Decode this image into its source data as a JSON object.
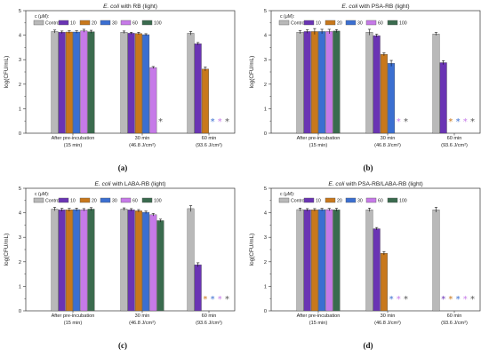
{
  "colors": {
    "Control": "#b9b9b9",
    "10": "#6a34b4",
    "20": "#c8781c",
    "30": "#3b6fd1",
    "60": "#c67ae8",
    "100": "#3a6b4e",
    "star_gray": "#555555"
  },
  "chart_data": [
    {
      "type": "bar",
      "panel_label": "(a)",
      "title_italic": "E. coli",
      "title_rest": " with RB (light)",
      "ylabel": "log(CFU/mL)",
      "ylim": [
        0,
        5
      ],
      "yticks": [
        "0",
        "1",
        "2",
        "3",
        "4",
        "5"
      ],
      "legend_title": "c (μM):",
      "legend": [
        "Control",
        "10",
        "20",
        "30",
        "60",
        "100"
      ],
      "groups": [
        {
          "label1": "After pre-incubation",
          "label2": "(15 min)"
        },
        {
          "label1": "30 min",
          "label2": "(46.8 J/cm²)"
        },
        {
          "label1": "60 min",
          "label2": "(93.6 J/cm²)"
        }
      ],
      "series": [
        {
          "name": "Control",
          "values": [
            4.15,
            4.12,
            4.08
          ]
        },
        {
          "name": "10",
          "values": [
            4.12,
            4.08,
            3.65
          ]
        },
        {
          "name": "20",
          "values": [
            4.13,
            4.07,
            2.62
          ]
        },
        {
          "name": "30",
          "values": [
            4.13,
            4.02,
            0
          ]
        },
        {
          "name": "60",
          "values": [
            4.18,
            2.68,
            0
          ]
        },
        {
          "name": "100",
          "values": [
            4.14,
            0,
            0
          ]
        }
      ],
      "errors": [
        [
          0.06,
          0.05,
          0.07
        ],
        [
          0.05,
          0.04,
          0.05
        ],
        [
          0.05,
          0.05,
          0.08
        ],
        [
          0.05,
          0.04,
          0
        ],
        [
          0.06,
          0.04,
          0
        ],
        [
          0.06,
          0,
          0
        ]
      ],
      "stars": [
        {
          "group": 1,
          "series": "100",
          "text": "*"
        },
        {
          "group": 2,
          "series": "30",
          "text": "*"
        },
        {
          "group": 2,
          "series": "60",
          "text": "*"
        },
        {
          "group": 2,
          "series": "100",
          "text": "*"
        }
      ]
    },
    {
      "type": "bar",
      "panel_label": "(b)",
      "title_italic": "E. coli",
      "title_rest": " with PSA-RB (light)",
      "ylabel": "log(CFU/mL)",
      "ylim": [
        0,
        5
      ],
      "yticks": [
        "0",
        "1",
        "2",
        "3",
        "4",
        "5"
      ],
      "legend_title": "c (μM):",
      "legend": [
        "Control",
        "10",
        "20",
        "30",
        "60",
        "100"
      ],
      "groups": [
        {
          "label1": "After pre-incubation",
          "label2": "(15 min)"
        },
        {
          "label1": "30 min",
          "label2": "(46.8 J/cm²)"
        },
        {
          "label1": "60 min",
          "label2": "(93.6 J/cm²)"
        }
      ],
      "series": [
        {
          "name": "Control",
          "values": [
            4.12,
            4.12,
            4.05
          ]
        },
        {
          "name": "10",
          "values": [
            4.15,
            3.98,
            2.88
          ]
        },
        {
          "name": "20",
          "values": [
            4.15,
            3.22,
            0
          ]
        },
        {
          "name": "30",
          "values": [
            4.15,
            2.85,
            0
          ]
        },
        {
          "name": "60",
          "values": [
            4.15,
            0,
            0
          ]
        },
        {
          "name": "100",
          "values": [
            4.17,
            0,
            0
          ]
        }
      ],
      "errors": [
        [
          0.06,
          0.12,
          0.06
        ],
        [
          0.07,
          0.06,
          0.08
        ],
        [
          0.12,
          0.06,
          0
        ],
        [
          0.09,
          0.12,
          0
        ],
        [
          0.09,
          0,
          0
        ],
        [
          0.06,
          0,
          0
        ]
      ],
      "stars": [
        {
          "group": 1,
          "series": "60",
          "text": "*"
        },
        {
          "group": 1,
          "series": "100",
          "text": "*"
        },
        {
          "group": 2,
          "series": "20",
          "text": "*"
        },
        {
          "group": 2,
          "series": "30",
          "text": "*"
        },
        {
          "group": 2,
          "series": "60",
          "text": "*"
        },
        {
          "group": 2,
          "series": "100",
          "text": "*"
        }
      ]
    },
    {
      "type": "bar",
      "panel_label": "(c)",
      "title_italic": "E. coli",
      "title_rest": " with LABA-RB (light)",
      "ylabel": "log(CFU/mL)",
      "ylim": [
        0,
        5
      ],
      "yticks": [
        "0",
        "1",
        "2",
        "3",
        "4",
        "5"
      ],
      "legend_title": "c (μM):",
      "legend": [
        "Control",
        "10",
        "20",
        "30",
        "60",
        "100"
      ],
      "groups": [
        {
          "label1": "After pre-incubation",
          "label2": "(15 min)"
        },
        {
          "label1": "30 min",
          "label2": "(46.8 J/cm²)"
        },
        {
          "label1": "60 min",
          "label2": "(93.6 J/cm²)"
        }
      ],
      "series": [
        {
          "name": "Control",
          "values": [
            4.15,
            4.15,
            4.17
          ]
        },
        {
          "name": "10",
          "values": [
            4.12,
            4.12,
            1.88
          ]
        },
        {
          "name": "20",
          "values": [
            4.12,
            4.08,
            0
          ]
        },
        {
          "name": "30",
          "values": [
            4.13,
            4.02,
            0
          ]
        },
        {
          "name": "60",
          "values": [
            4.12,
            3.92,
            0
          ]
        },
        {
          "name": "100",
          "values": [
            4.15,
            3.68,
            0
          ]
        }
      ],
      "errors": [
        [
          0.07,
          0.05,
          0.12
        ],
        [
          0.06,
          0.05,
          0.08
        ],
        [
          0.06,
          0.05,
          0
        ],
        [
          0.06,
          0.05,
          0
        ],
        [
          0.05,
          0.05,
          0
        ],
        [
          0.06,
          0.06,
          0
        ]
      ],
      "stars": [
        {
          "group": 2,
          "series": "20",
          "text": "*"
        },
        {
          "group": 2,
          "series": "30",
          "text": "*"
        },
        {
          "group": 2,
          "series": "60",
          "text": "*"
        },
        {
          "group": 2,
          "series": "100",
          "text": "*"
        }
      ]
    },
    {
      "type": "bar",
      "panel_label": "(d)",
      "title_italic": "E. coli",
      "title_rest": " with PSA-RB/LABA-RB (light)",
      "ylabel": "log(CFU/mL)",
      "ylim": [
        0,
        5
      ],
      "yticks": [
        "0",
        "1",
        "2",
        "3",
        "4",
        "5"
      ],
      "legend_title": "c (μM):",
      "legend": [
        "Control",
        "10",
        "20",
        "30",
        "60",
        "100"
      ],
      "groups": [
        {
          "label1": "After pre-incubation",
          "label2": "(15 min)"
        },
        {
          "label1": "30 min",
          "label2": "(46.8 J/cm²)"
        },
        {
          "label1": "60 min",
          "label2": "(93.6 J/cm²)"
        }
      ],
      "series": [
        {
          "name": "Control",
          "values": [
            4.13,
            4.12,
            4.12
          ]
        },
        {
          "name": "10",
          "values": [
            4.12,
            3.35,
            0
          ]
        },
        {
          "name": "20",
          "values": [
            4.12,
            2.35,
            0
          ]
        },
        {
          "name": "30",
          "values": [
            4.13,
            0,
            0
          ]
        },
        {
          "name": "60",
          "values": [
            4.13,
            0,
            0
          ]
        },
        {
          "name": "100",
          "values": [
            4.12,
            0,
            0
          ]
        }
      ],
      "errors": [
        [
          0.06,
          0.07,
          0.1
        ],
        [
          0.05,
          0.05,
          0
        ],
        [
          0.05,
          0.07,
          0
        ],
        [
          0.05,
          0,
          0
        ],
        [
          0.05,
          0,
          0
        ],
        [
          0.06,
          0,
          0
        ]
      ],
      "stars": [
        {
          "group": 1,
          "series": "30",
          "text": "*"
        },
        {
          "group": 1,
          "series": "60",
          "text": "*"
        },
        {
          "group": 1,
          "series": "100",
          "text": "*"
        },
        {
          "group": 2,
          "series": "10",
          "text": "*"
        },
        {
          "group": 2,
          "series": "20",
          "text": "*"
        },
        {
          "group": 2,
          "series": "30",
          "text": "*"
        },
        {
          "group": 2,
          "series": "60",
          "text": "*"
        },
        {
          "group": 2,
          "series": "100",
          "text": "*"
        }
      ]
    }
  ]
}
